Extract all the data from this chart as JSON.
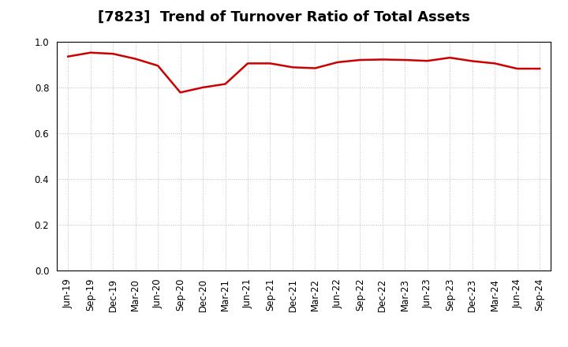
{
  "title": "[7823]  Trend of Turnover Ratio of Total Assets",
  "x_labels": [
    "Jun-19",
    "Sep-19",
    "Dec-19",
    "Mar-20",
    "Jun-20",
    "Sep-20",
    "Dec-20",
    "Mar-21",
    "Jun-21",
    "Sep-21",
    "Dec-21",
    "Mar-22",
    "Jun-22",
    "Sep-22",
    "Dec-22",
    "Mar-23",
    "Jun-23",
    "Sep-23",
    "Dec-23",
    "Mar-24",
    "Jun-24",
    "Sep-24"
  ],
  "values": [
    0.935,
    0.952,
    0.947,
    0.925,
    0.895,
    0.778,
    0.8,
    0.815,
    0.905,
    0.905,
    0.888,
    0.884,
    0.91,
    0.92,
    0.922,
    0.92,
    0.916,
    0.93,
    0.915,
    0.905,
    0.882,
    0.882
  ],
  "line_color": "#CC0000",
  "line_width": 1.8,
  "ylim": [
    0.0,
    1.0
  ],
  "yticks": [
    0.0,
    0.2,
    0.4,
    0.6,
    0.8,
    1.0
  ],
  "background_color": "#ffffff",
  "grid_color": "#bbbbbb",
  "title_fontsize": 13,
  "tick_fontsize": 8.5
}
